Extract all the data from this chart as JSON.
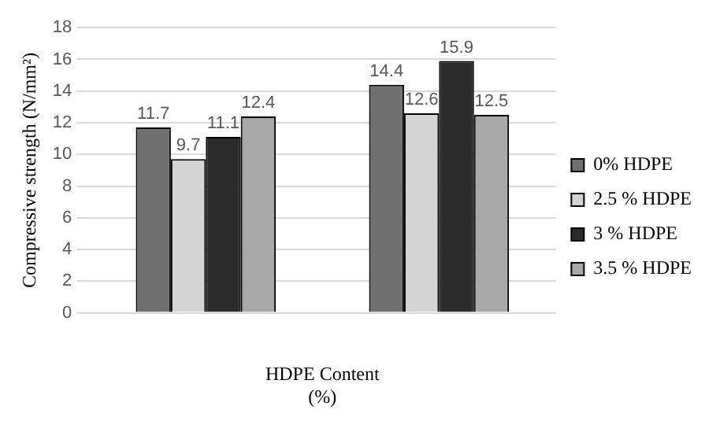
{
  "chart_data": {
    "type": "bar",
    "ylabel": "Compressive strength (N/mm²)",
    "xlabel": "HDPE Content\n(%)",
    "categories": [
      null,
      null
    ],
    "series": [
      {
        "name": "0% HDPE",
        "color": "#707070",
        "values": [
          11.7,
          14.4
        ]
      },
      {
        "name": "2.5 % HDPE",
        "color": "#d4d4d4",
        "values": [
          9.7,
          12.6
        ]
      },
      {
        "name": "3 % HDPE",
        "color": "#2b2b2b",
        "values": [
          11.1,
          15.9
        ]
      },
      {
        "name": "3.5 % HDPE",
        "color": "#a8a8a8",
        "values": [
          12.4,
          12.5
        ]
      }
    ],
    "ylim": [
      0,
      18
    ],
    "yticks": [
      0,
      2,
      4,
      6,
      8,
      10,
      12,
      14,
      16,
      18
    ],
    "grid": "y",
    "legend": "right",
    "data_labels": true
  }
}
